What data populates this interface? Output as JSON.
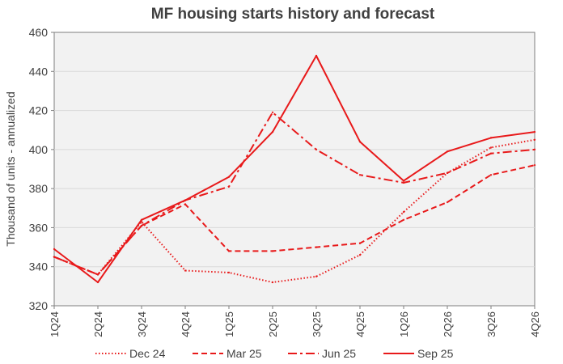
{
  "chart_data": {
    "type": "line",
    "title": "MF housing starts history and forecast",
    "xlabel": "",
    "ylabel": "Thousand of units - annualized",
    "categories": [
      "1Q24",
      "2Q24",
      "3Q24",
      "4Q24",
      "1Q25",
      "2Q25",
      "3Q25",
      "4Q25",
      "1Q26",
      "2Q26",
      "3Q26",
      "4Q26"
    ],
    "ylim": [
      320,
      460
    ],
    "yticks": [
      320,
      340,
      360,
      380,
      400,
      420,
      440,
      460
    ],
    "grid": true,
    "legend_position": "bottom",
    "series": [
      {
        "name": "Dec 24",
        "dash": "dotted",
        "values": [
          345,
          336,
          363,
          338,
          337,
          332,
          335,
          346,
          368,
          388,
          401,
          405
        ]
      },
      {
        "name": "Mar 25",
        "dash": "dashed",
        "values": [
          345,
          336,
          361,
          372,
          348,
          348,
          350,
          352,
          364,
          373,
          387,
          392
        ]
      },
      {
        "name": "Jun 25",
        "dash": "dashdot",
        "values": [
          345,
          336,
          361,
          374,
          381,
          419,
          400,
          387,
          383,
          388,
          398,
          400
        ]
      },
      {
        "name": "Sep 25",
        "dash": "solid",
        "values": [
          349,
          332,
          364,
          374,
          386,
          409,
          448,
          404,
          384,
          399,
          406,
          409
        ]
      }
    ],
    "colors": {
      "line": "#e8191a",
      "plot_bg": "#f2f2f2",
      "grid": "#d9d9d9",
      "axis": "#7f7f7f",
      "text": "#404040"
    }
  }
}
